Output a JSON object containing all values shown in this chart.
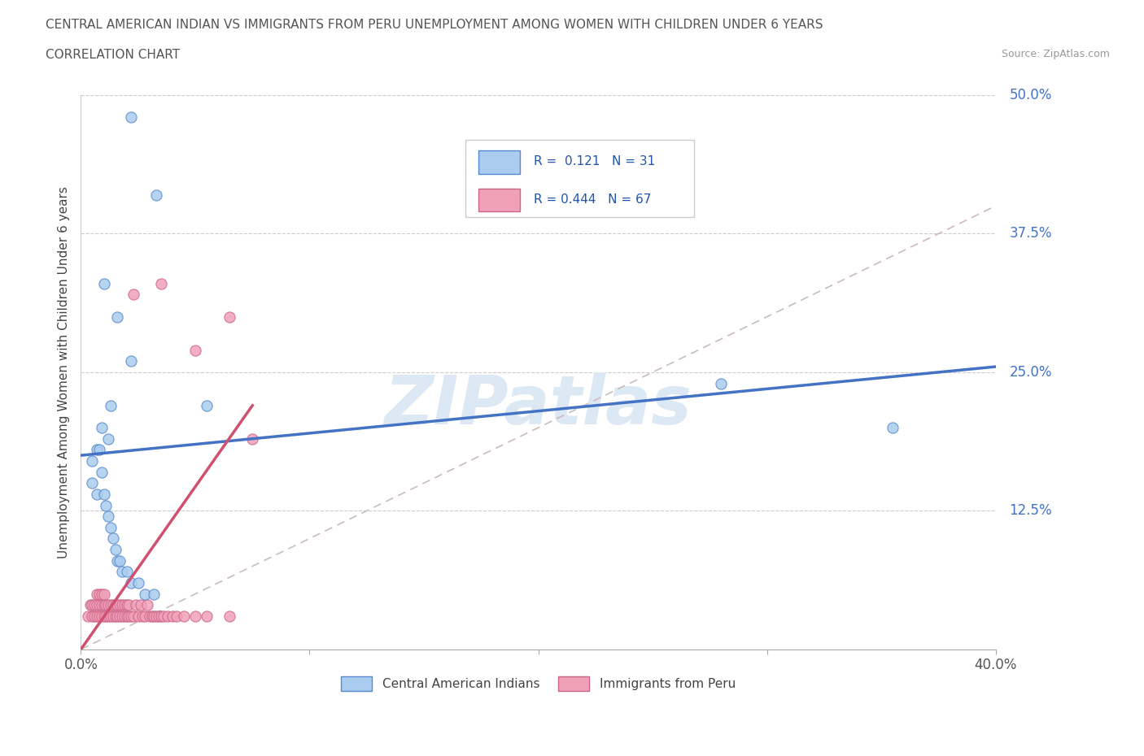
{
  "title": "CENTRAL AMERICAN INDIAN VS IMMIGRANTS FROM PERU UNEMPLOYMENT AMONG WOMEN WITH CHILDREN UNDER 6 YEARS",
  "subtitle": "CORRELATION CHART",
  "source": "Source: ZipAtlas.com",
  "watermark": "ZIPatlas",
  "ylabel": "Unemployment Among Women with Children Under 6 years",
  "xlim": [
    0.0,
    0.4
  ],
  "ylim": [
    0.0,
    0.5
  ],
  "xtick_positions": [
    0.0,
    0.1,
    0.2,
    0.3,
    0.4
  ],
  "xtick_labels": [
    "0.0%",
    "",
    "",
    "",
    "40.0%"
  ],
  "ytick_labels_right": [
    "12.5%",
    "25.0%",
    "37.5%",
    "50.0%"
  ],
  "yticks_right": [
    0.125,
    0.25,
    0.375,
    0.5
  ],
  "series1_color": "#aaccee",
  "series2_color": "#f0a0b8",
  "series1_edge_color": "#5588cc",
  "series2_edge_color": "#cc6688",
  "series1_line_color": "#4472c4",
  "series2_line_color": "#d05070",
  "series1_label": "Central American Indians",
  "series2_label": "Immigrants from Peru",
  "series1_R": 0.121,
  "series1_N": 31,
  "series2_R": 0.444,
  "series2_N": 67,
  "legend_text_color": "#2255aa",
  "title_color": "#555555",
  "axis_color": "#4472c4",
  "watermark_color": "#dde8f5",
  "background_color": "#ffffff",
  "series1_x": [
    0.022,
    0.033,
    0.01,
    0.016,
    0.022,
    0.013,
    0.055,
    0.009,
    0.012,
    0.007,
    0.005,
    0.005,
    0.007,
    0.008,
    0.009,
    0.01,
    0.011,
    0.012,
    0.013,
    0.014,
    0.015,
    0.016,
    0.017,
    0.018,
    0.02,
    0.022,
    0.025,
    0.028,
    0.032,
    0.28,
    0.355
  ],
  "series1_y": [
    0.48,
    0.41,
    0.33,
    0.3,
    0.26,
    0.22,
    0.22,
    0.2,
    0.19,
    0.18,
    0.17,
    0.15,
    0.14,
    0.18,
    0.16,
    0.14,
    0.13,
    0.12,
    0.11,
    0.1,
    0.09,
    0.08,
    0.08,
    0.07,
    0.07,
    0.06,
    0.06,
    0.05,
    0.05,
    0.24,
    0.2
  ],
  "series2_x": [
    0.003,
    0.004,
    0.005,
    0.005,
    0.006,
    0.006,
    0.007,
    0.007,
    0.007,
    0.008,
    0.008,
    0.008,
    0.009,
    0.009,
    0.009,
    0.01,
    0.01,
    0.01,
    0.011,
    0.011,
    0.012,
    0.012,
    0.013,
    0.013,
    0.014,
    0.014,
    0.015,
    0.015,
    0.016,
    0.016,
    0.017,
    0.017,
    0.018,
    0.018,
    0.019,
    0.019,
    0.02,
    0.02,
    0.021,
    0.021,
    0.022,
    0.023,
    0.024,
    0.025,
    0.026,
    0.027,
    0.028,
    0.029,
    0.03,
    0.031,
    0.032,
    0.033,
    0.034,
    0.035,
    0.036,
    0.038,
    0.04,
    0.042,
    0.045,
    0.05,
    0.055,
    0.065,
    0.023,
    0.035,
    0.05,
    0.065,
    0.075
  ],
  "series2_y": [
    0.03,
    0.04,
    0.03,
    0.04,
    0.03,
    0.04,
    0.03,
    0.04,
    0.05,
    0.03,
    0.04,
    0.05,
    0.03,
    0.04,
    0.05,
    0.03,
    0.04,
    0.05,
    0.03,
    0.04,
    0.03,
    0.04,
    0.03,
    0.04,
    0.03,
    0.04,
    0.03,
    0.04,
    0.03,
    0.04,
    0.03,
    0.04,
    0.03,
    0.04,
    0.03,
    0.04,
    0.03,
    0.04,
    0.03,
    0.04,
    0.03,
    0.03,
    0.04,
    0.03,
    0.04,
    0.03,
    0.03,
    0.04,
    0.03,
    0.03,
    0.03,
    0.03,
    0.03,
    0.03,
    0.03,
    0.03,
    0.03,
    0.03,
    0.03,
    0.03,
    0.03,
    0.03,
    0.32,
    0.33,
    0.27,
    0.3,
    0.19
  ],
  "trend1_x": [
    0.0,
    0.4
  ],
  "trend1_y": [
    0.175,
    0.255
  ],
  "trend2_x": [
    0.0,
    0.075
  ],
  "trend2_y": [
    0.0,
    0.22
  ]
}
